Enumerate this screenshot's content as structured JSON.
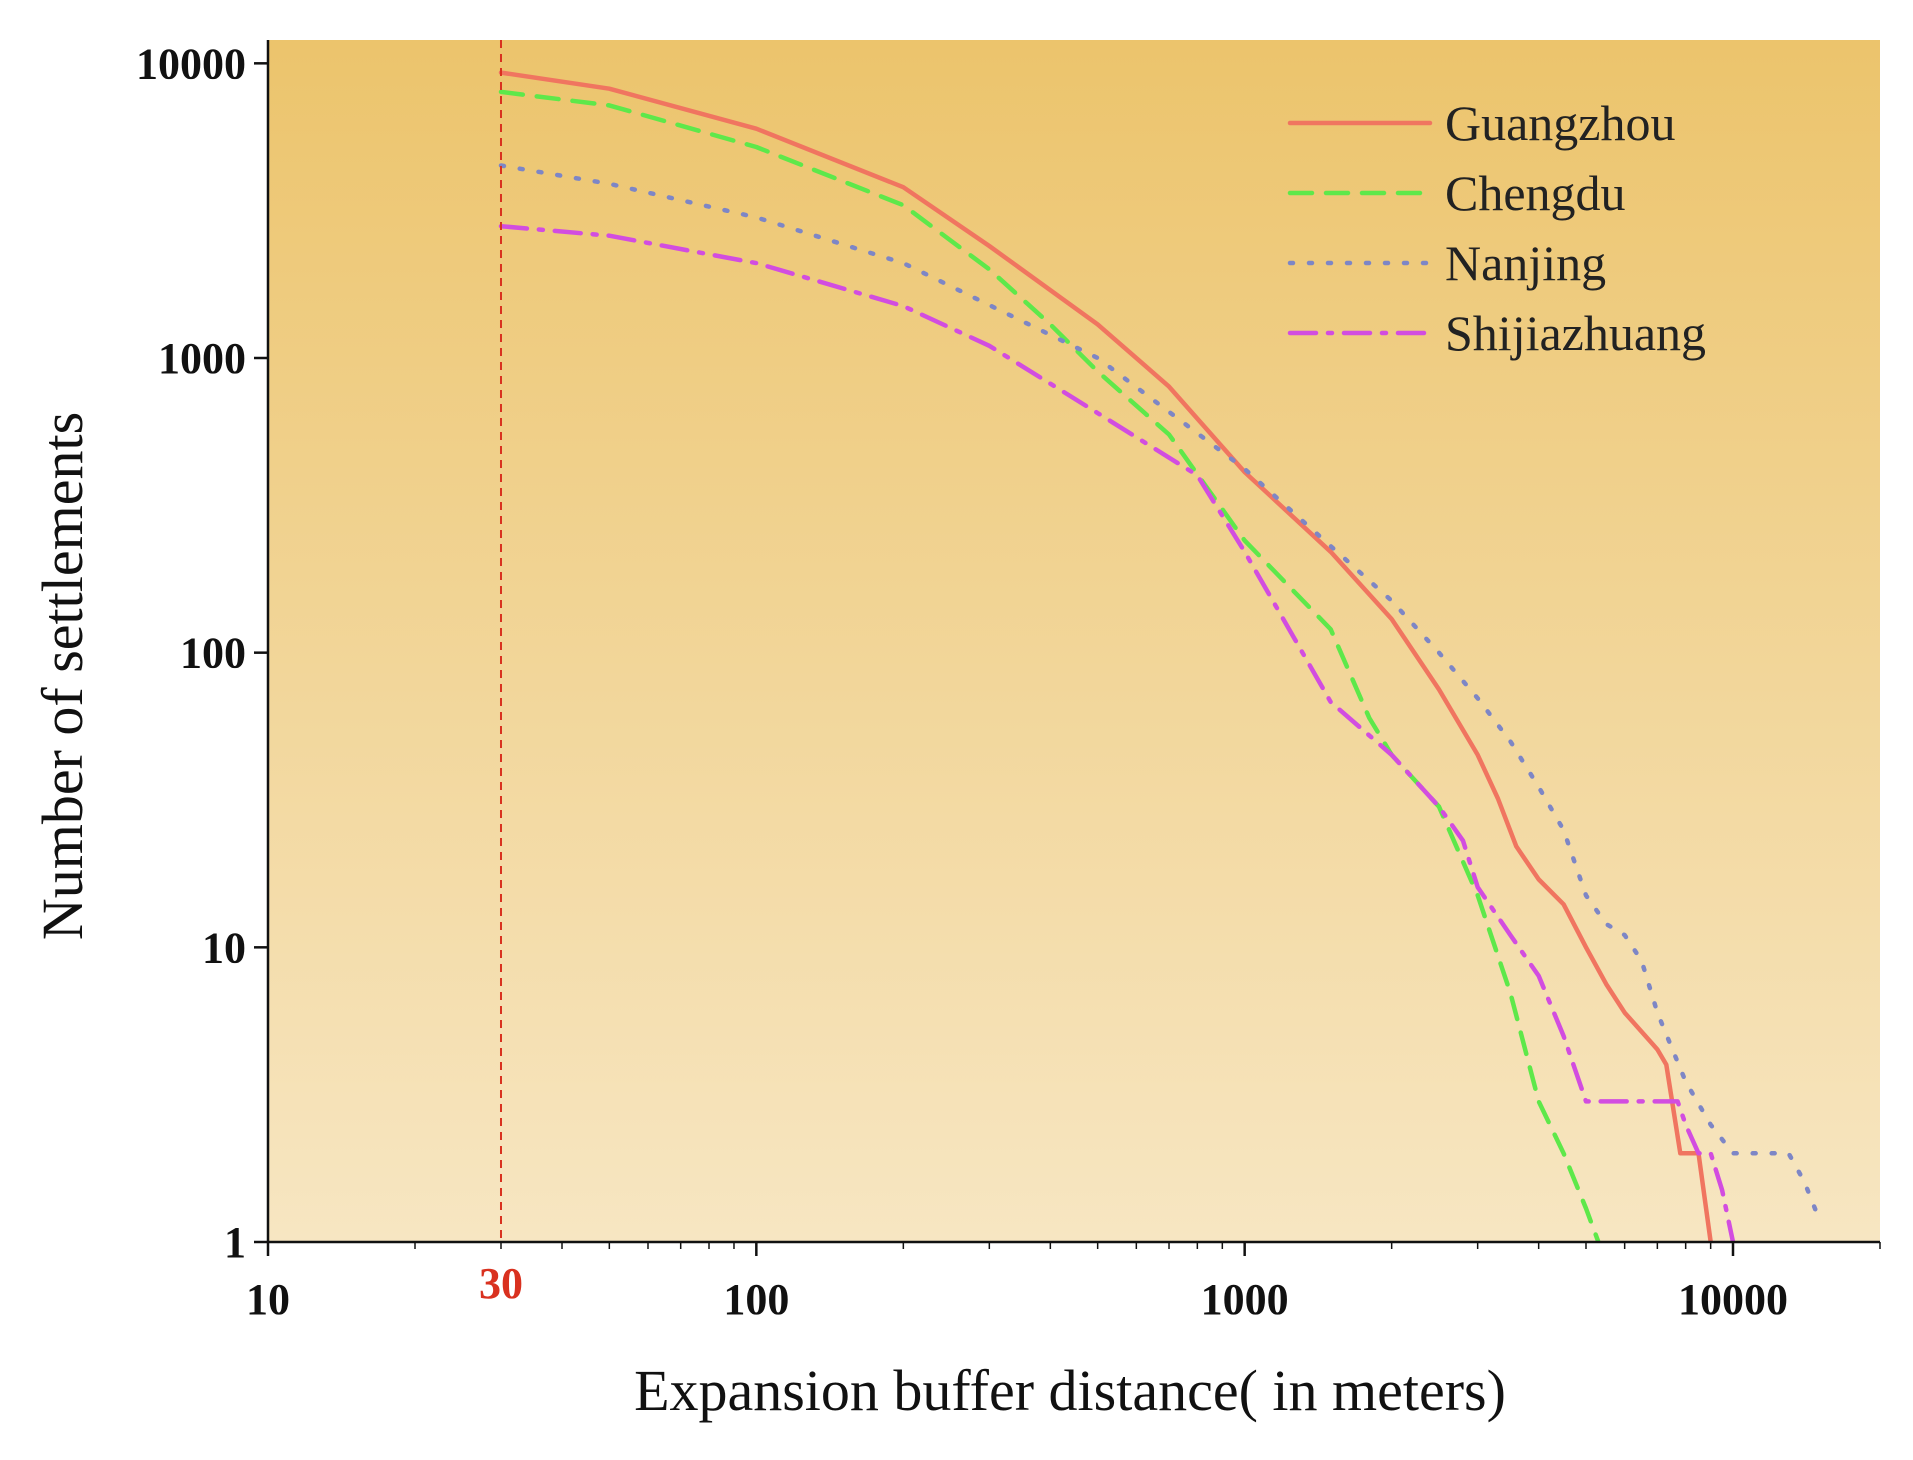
{
  "chart_data": {
    "type": "line",
    "title": "",
    "xlabel": "Expansion buffer distance( in meters)",
    "ylabel": "Number of settlements",
    "xscale": "log",
    "yscale": "log",
    "xlim": [
      10,
      20000
    ],
    "ylim": [
      1,
      12000
    ],
    "xticks": [
      10,
      100,
      1000,
      10000
    ],
    "xtick_labels": [
      "10",
      "100",
      "1000",
      "10000"
    ],
    "yticks": [
      1,
      10,
      100,
      1000,
      10000
    ],
    "ytick_labels": [
      "1",
      "10",
      "100",
      "1000",
      "10000"
    ],
    "reference_line": {
      "x": 30,
      "label": "30",
      "color": "#d9311f"
    },
    "background": {
      "top": "#ecc46c",
      "bottom": "#f7e6c2"
    },
    "legend": {
      "position": "top-right"
    },
    "series": [
      {
        "name": "Guangzhou",
        "color": "#f07560",
        "style": "solid",
        "points": [
          [
            30,
            9300
          ],
          [
            50,
            8200
          ],
          [
            100,
            6000
          ],
          [
            200,
            3800
          ],
          [
            300,
            2400
          ],
          [
            500,
            1300
          ],
          [
            700,
            800
          ],
          [
            1000,
            410
          ],
          [
            1500,
            220
          ],
          [
            2000,
            130
          ],
          [
            2500,
            75
          ],
          [
            3000,
            45
          ],
          [
            3300,
            32
          ],
          [
            3600,
            22
          ],
          [
            4000,
            17
          ],
          [
            4500,
            14
          ],
          [
            5000,
            10
          ],
          [
            5500,
            7.5
          ],
          [
            6000,
            6
          ],
          [
            7000,
            4.5
          ],
          [
            7300,
            4
          ],
          [
            7800,
            2
          ],
          [
            8500,
            2
          ],
          [
            9000,
            1
          ]
        ]
      },
      {
        "name": "Chengdu",
        "color": "#5ee84a",
        "style": "dashed",
        "points": [
          [
            30,
            8000
          ],
          [
            50,
            7200
          ],
          [
            100,
            5200
          ],
          [
            200,
            3300
          ],
          [
            300,
            2000
          ],
          [
            400,
            1300
          ],
          [
            500,
            900
          ],
          [
            700,
            550
          ],
          [
            1000,
            240
          ],
          [
            1500,
            120
          ],
          [
            1800,
            60
          ],
          [
            2000,
            45
          ],
          [
            2500,
            30
          ],
          [
            3000,
            15
          ],
          [
            3500,
            7
          ],
          [
            4000,
            3
          ],
          [
            4500,
            2
          ],
          [
            5000,
            1.3
          ],
          [
            5300,
            1
          ]
        ]
      },
      {
        "name": "Nanjing",
        "color": "#7d86c6",
        "style": "dotted",
        "points": [
          [
            30,
            4500
          ],
          [
            50,
            3900
          ],
          [
            100,
            3000
          ],
          [
            200,
            2100
          ],
          [
            500,
            1000
          ],
          [
            1000,
            420
          ],
          [
            1500,
            230
          ],
          [
            2000,
            150
          ],
          [
            2500,
            100
          ],
          [
            3000,
            70
          ],
          [
            3500,
            50
          ],
          [
            4000,
            35
          ],
          [
            4500,
            25
          ],
          [
            5000,
            15
          ],
          [
            5500,
            12
          ],
          [
            6000,
            11
          ],
          [
            6500,
            9
          ],
          [
            7000,
            6
          ],
          [
            8000,
            3.5
          ],
          [
            9000,
            2.5
          ],
          [
            10000,
            2
          ],
          [
            13000,
            2
          ],
          [
            14000,
            1.6
          ],
          [
            15000,
            1.2
          ]
        ]
      },
      {
        "name": "Shijiazhuang",
        "color": "#d24de0",
        "style": "dashdot",
        "points": [
          [
            30,
            2800
          ],
          [
            50,
            2600
          ],
          [
            100,
            2100
          ],
          [
            200,
            1500
          ],
          [
            300,
            1100
          ],
          [
            500,
            650
          ],
          [
            800,
            400
          ],
          [
            1000,
            220
          ],
          [
            1200,
            130
          ],
          [
            1500,
            68
          ],
          [
            2000,
            45
          ],
          [
            2500,
            30
          ],
          [
            2800,
            23
          ],
          [
            3000,
            16
          ],
          [
            3500,
            11
          ],
          [
            4000,
            8
          ],
          [
            4500,
            5
          ],
          [
            5000,
            3
          ],
          [
            6000,
            3
          ],
          [
            7000,
            3
          ],
          [
            7700,
            3
          ],
          [
            8000,
            2.5
          ],
          [
            8500,
            2
          ],
          [
            9000,
            2
          ],
          [
            9500,
            1.5
          ],
          [
            10000,
            1
          ]
        ]
      }
    ]
  }
}
